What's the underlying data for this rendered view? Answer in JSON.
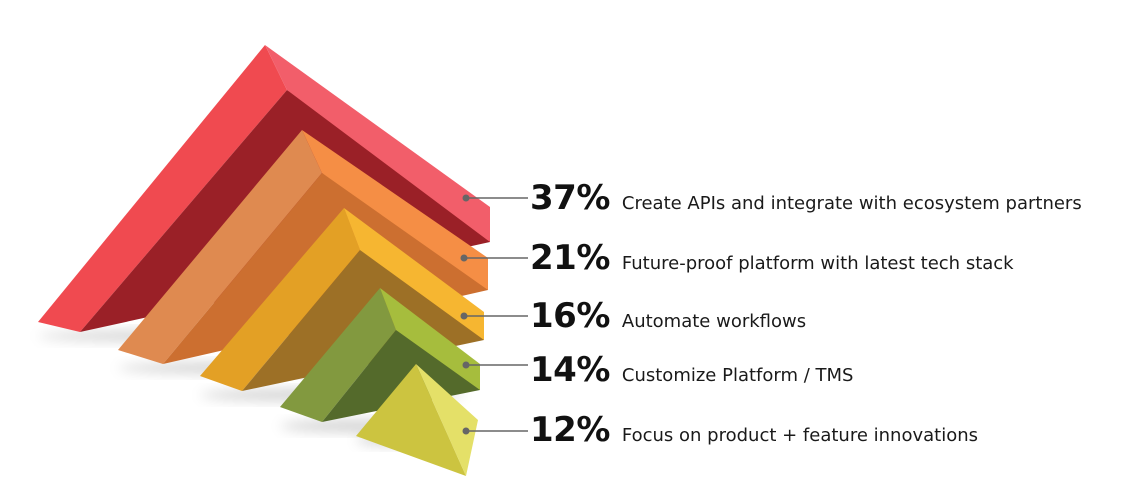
{
  "chart_data": {
    "type": "bar",
    "title": "",
    "categories": [
      "Create APIs and integrate with ecosystem partners",
      "Future-proof platform with latest tech stack",
      "Automate workflows",
      "Customize Platform / TMS",
      "Focus on product + feature innovations"
    ],
    "values": [
      37,
      21,
      16,
      14,
      12
    ],
    "value_labels": [
      "37%",
      "21%",
      "16%",
      "14%",
      "12%"
    ],
    "unit": "%",
    "colors": [
      {
        "front": "#f04a50",
        "inner": "#9a2027",
        "right": "#f25e6a"
      },
      {
        "front": "#df8a50",
        "inner": "#cc6f30",
        "right": "#f58e45"
      },
      {
        "front": "#e3a025",
        "inner": "#9d7026",
        "right": "#f6b631"
      },
      {
        "front": "#82993f",
        "inner": "#546a2b",
        "right": "#a6bd3d"
      },
      {
        "front": "#ccc440",
        "inner": "#ccc440",
        "right": "#e4e068"
      }
    ],
    "leader_color": "#666666",
    "legend": "right"
  }
}
